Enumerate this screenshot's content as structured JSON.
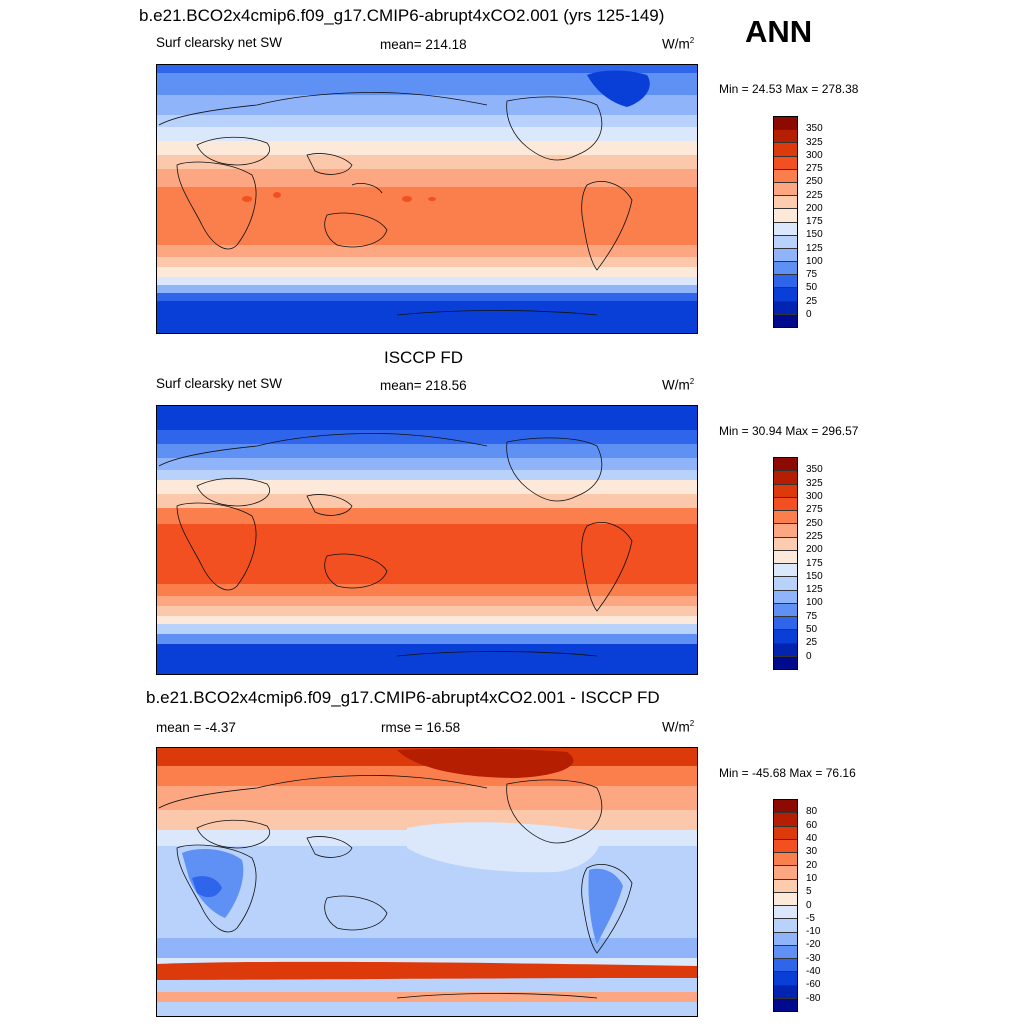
{
  "header": {
    "ann_label": "ANN"
  },
  "panels": [
    {
      "title": "b.e21.BCO2x4cmip6.f09_g17.CMIP6-abrupt4xCO2.001 (yrs 125-149)",
      "left_label": "Surf clearsky net SW",
      "center_label": "mean= 214.18",
      "unit_base": "W/m",
      "unit_exp": "2",
      "minmax": "Min =  24.53 Max = 278.38",
      "colorbar": {
        "labels": [
          "350",
          "325",
          "300",
          "275",
          "250",
          "225",
          "200",
          "175",
          "150",
          "125",
          "100",
          "75",
          "50",
          "25",
          "0"
        ],
        "colors": [
          "#8c0a00",
          "#b51e00",
          "#dc3a0a",
          "#f25020",
          "#fa7f4c",
          "#fca682",
          "#fdcbae",
          "#fde9d9",
          "#dbe8fb",
          "#b8d2fb",
          "#8fb4f9",
          "#5f91f5",
          "#2f65eb",
          "#0a3fd7",
          "#0224b0",
          "#000a8c"
        ]
      },
      "map_kind": "climatology"
    },
    {
      "title": "ISCCP FD",
      "left_label": "Surf clearsky net SW",
      "center_label": "mean= 218.56",
      "unit_base": "W/m",
      "unit_exp": "2",
      "minmax": "Min =  30.94 Max = 296.57",
      "colorbar": {
        "labels": [
          "350",
          "325",
          "300",
          "275",
          "250",
          "225",
          "200",
          "175",
          "150",
          "125",
          "100",
          "75",
          "50",
          "25",
          "0"
        ],
        "colors": [
          "#8c0a00",
          "#b51e00",
          "#dc3a0a",
          "#f25020",
          "#fa7f4c",
          "#fca682",
          "#fdcbae",
          "#fde9d9",
          "#dbe8fb",
          "#b8d2fb",
          "#8fb4f9",
          "#5f91f5",
          "#2f65eb",
          "#0a3fd7",
          "#0224b0",
          "#000a8c"
        ]
      },
      "map_kind": "climatology_obs"
    },
    {
      "title": "b.e21.BCO2x4cmip6.f09_g17.CMIP6-abrupt4xCO2.001 - ISCCP FD",
      "left_label": "mean =  -4.37",
      "center_label": "rmse =  16.58",
      "unit_base": "W/m",
      "unit_exp": "2",
      "minmax": "Min = -45.68 Max =  76.16",
      "colorbar": {
        "labels": [
          "80",
          "60",
          "40",
          "30",
          "20",
          "10",
          "5",
          "0",
          "-5",
          "-10",
          "-20",
          "-30",
          "-40",
          "-60",
          "-80"
        ],
        "colors": [
          "#8c0a00",
          "#b51e00",
          "#dc3a0a",
          "#f25020",
          "#fa7f4c",
          "#fca682",
          "#fdcbae",
          "#fde9d9",
          "#dbe8fb",
          "#b8d2fb",
          "#8fb4f9",
          "#5f91f5",
          "#2f65eb",
          "#0a3fd7",
          "#0224b0",
          "#000a8c"
        ]
      },
      "map_kind": "difference"
    }
  ]
}
